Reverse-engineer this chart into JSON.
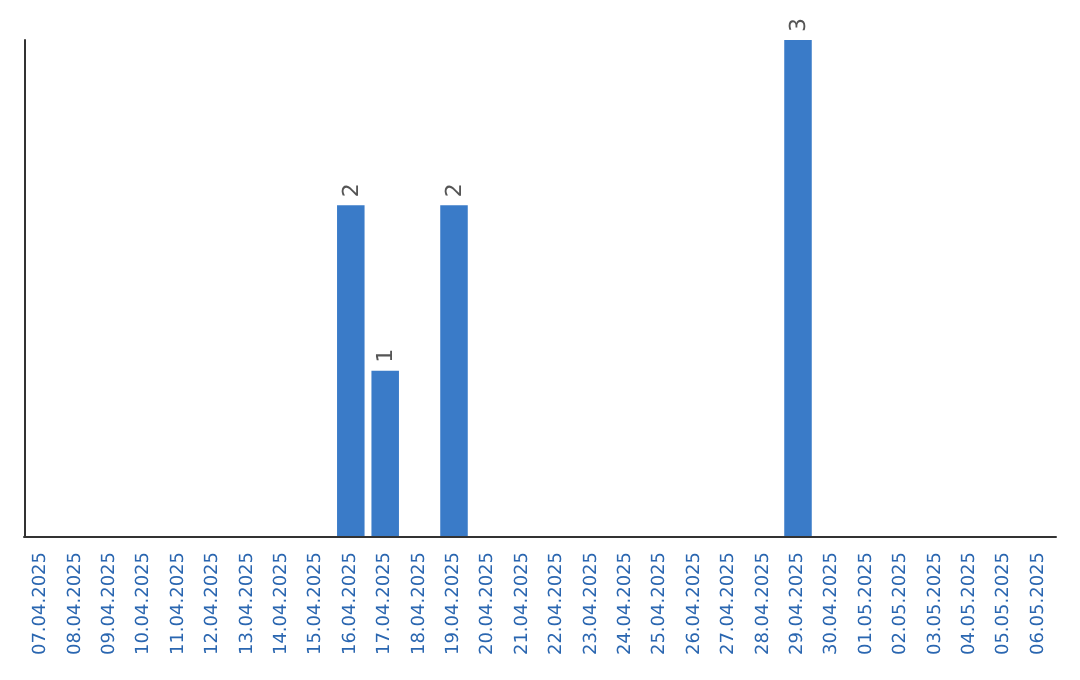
{
  "chart_data": {
    "type": "bar",
    "categories": [
      "07.04.2025",
      "08.04.2025",
      "09.04.2025",
      "10.04.2025",
      "11.04.2025",
      "12.04.2025",
      "13.04.2025",
      "14.04.2025",
      "15.04.2025",
      "16.04.2025",
      "17.04.2025",
      "18.04.2025",
      "19.04.2025",
      "20.04.2025",
      "21.04.2025",
      "22.04.2025",
      "23.04.2025",
      "24.04.2025",
      "25.04.2025",
      "26.04.2025",
      "27.04.2025",
      "28.04.2025",
      "29.04.2025",
      "30.04.2025",
      "01.05.2025",
      "02.05.2025",
      "03.05.2025",
      "04.05.2025",
      "05.05.2025",
      "06.05.2025"
    ],
    "values": [
      0,
      0,
      0,
      0,
      0,
      0,
      0,
      0,
      0,
      2,
      1,
      0,
      2,
      0,
      0,
      0,
      0,
      0,
      0,
      0,
      0,
      0,
      3,
      0,
      0,
      0,
      0,
      0,
      0,
      0
    ],
    "value_labels": [
      null,
      null,
      null,
      null,
      null,
      null,
      null,
      null,
      null,
      "2",
      "1",
      null,
      "2",
      null,
      null,
      null,
      null,
      null,
      null,
      null,
      null,
      null,
      "3",
      null,
      null,
      null,
      null,
      null,
      null,
      null
    ],
    "color": "#3a7bc8",
    "grid": false,
    "tick_labels": "x"
  }
}
